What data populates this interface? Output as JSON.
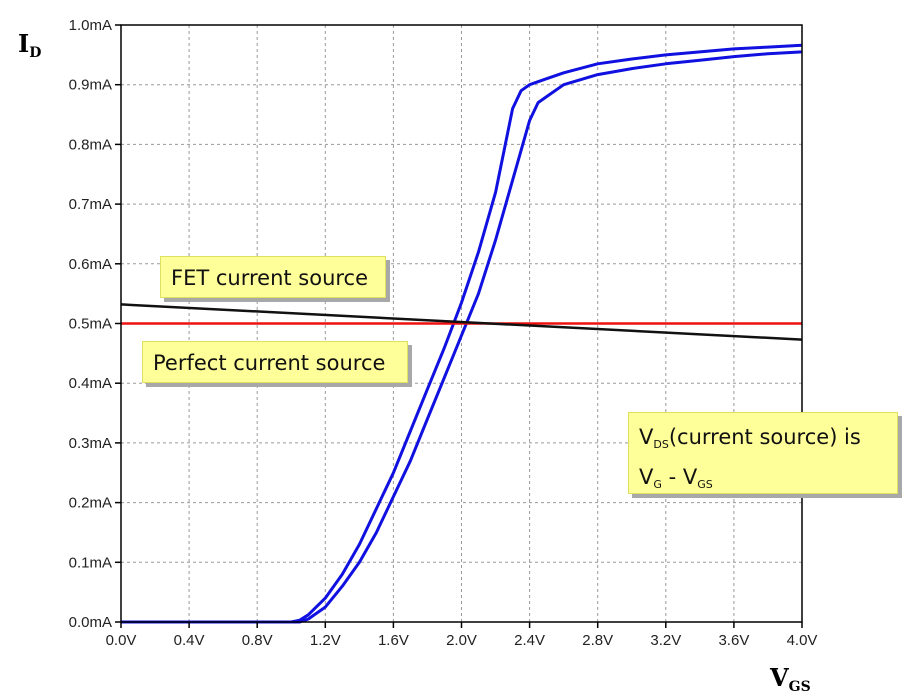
{
  "chart_data": {
    "type": "line",
    "xlabel": {
      "main": "V",
      "sub": "GS"
    },
    "ylabel": {
      "main": "I",
      "sub": "D"
    },
    "xlim": [
      0,
      4.0
    ],
    "ylim": [
      0,
      1.0
    ],
    "grid": true,
    "x_ticks": [
      "0.0V",
      "0.4V",
      "0.8V",
      "1.2V",
      "1.6V",
      "2.0V",
      "2.4V",
      "2.8V",
      "3.2V",
      "3.6V",
      "4.0V"
    ],
    "y_ticks": [
      "0.0mA",
      "0.1mA",
      "0.2mA",
      "0.3mA",
      "0.4mA",
      "0.5mA",
      "0.6mA",
      "0.7mA",
      "0.8mA",
      "0.9mA",
      "1.0mA"
    ],
    "series": [
      {
        "color": "#1010e0",
        "x": [
          0,
          1.0,
          1.05,
          1.1,
          1.2,
          1.3,
          1.4,
          1.5,
          1.6,
          1.7,
          1.8,
          1.9,
          2.0,
          2.1,
          2.2,
          2.25,
          2.3,
          2.35,
          2.4,
          2.5,
          2.6,
          2.8,
          3.0,
          3.2,
          3.4,
          3.6,
          3.8,
          4.0
        ],
        "y": [
          0,
          0,
          0.003,
          0.012,
          0.04,
          0.08,
          0.13,
          0.19,
          0.25,
          0.32,
          0.39,
          0.46,
          0.535,
          0.62,
          0.72,
          0.79,
          0.86,
          0.89,
          0.9,
          0.91,
          0.92,
          0.935,
          0.943,
          0.95,
          0.955,
          0.96,
          0.963,
          0.966
        ]
      },
      {
        "color": "#1010e0",
        "x": [
          0,
          1.05,
          1.1,
          1.2,
          1.3,
          1.4,
          1.5,
          1.6,
          1.7,
          1.8,
          1.9,
          2.0,
          2.1,
          2.2,
          2.3,
          2.4,
          2.45,
          2.5,
          2.6,
          2.8,
          3.0,
          3.2,
          3.4,
          3.6,
          3.8,
          4.0
        ],
        "y": [
          0,
          0,
          0.005,
          0.025,
          0.06,
          0.1,
          0.15,
          0.21,
          0.27,
          0.34,
          0.41,
          0.48,
          0.55,
          0.64,
          0.74,
          0.84,
          0.87,
          0.88,
          0.9,
          0.917,
          0.927,
          0.935,
          0.941,
          0.947,
          0.952,
          0.955
        ]
      },
      {
        "color": "#ee1111",
        "x": [
          0,
          4.0
        ],
        "y": [
          0.5,
          0.5
        ]
      },
      {
        "color": "#111111",
        "x": [
          0,
          4.0
        ],
        "y": [
          0.532,
          0.473
        ]
      }
    ],
    "annotations": {
      "fet": "FET current source",
      "perfect": "Perfect current source",
      "vds_v": "V",
      "vds_sub": "DS",
      "vds_rest": "(current source) is",
      "vg_v": "V",
      "vg_sub": "G",
      "vg_mid": " - V",
      "vgs_sub": "GS"
    }
  }
}
